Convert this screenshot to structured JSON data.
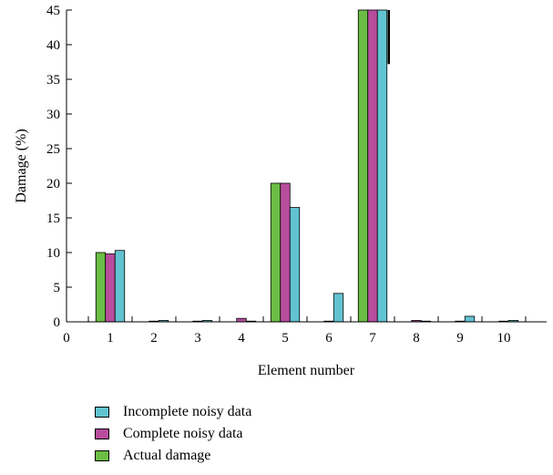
{
  "chart_data": {
    "type": "bar",
    "xlabel": "Element number",
    "ylabel": "Damage (%)",
    "x_ticks": [
      0,
      1,
      2,
      3,
      4,
      5,
      6,
      7,
      8,
      9,
      10
    ],
    "categories": [
      1,
      2,
      3,
      4,
      5,
      6,
      7,
      8,
      9,
      10
    ],
    "ylim": [
      0,
      45
    ],
    "y_ticks": [
      0,
      5,
      10,
      15,
      20,
      25,
      30,
      35,
      40,
      45
    ],
    "grid": false,
    "legend_position": "bottom-left",
    "series": [
      {
        "name": "Actual damage",
        "color": "#6bbd45",
        "values": [
          10,
          0,
          0,
          0,
          20,
          0,
          45,
          0,
          0,
          0
        ]
      },
      {
        "name": "Complete noisy data",
        "color": "#b84d9e",
        "values": [
          9.8,
          0.1,
          0.1,
          0.5,
          20,
          0.1,
          45,
          0.2,
          0.1,
          0.1
        ]
      },
      {
        "name": "Incomplete noisy data",
        "color": "#62c3d0",
        "values": [
          10.3,
          0.2,
          0.2,
          0.1,
          16.5,
          4.1,
          45,
          0.1,
          0.8,
          0.2
        ]
      }
    ],
    "error_bar": {
      "category": 7,
      "upper": 45,
      "lower": 37.2
    }
  }
}
